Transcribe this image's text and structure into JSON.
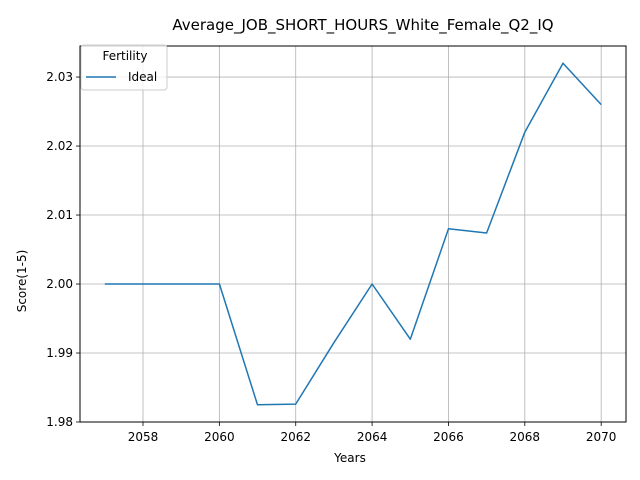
{
  "chart_data": {
    "type": "line",
    "title": "Average_JOB_SHORT_HOURS_White_Female_Q2_IQ",
    "xlabel": "Years",
    "ylabel": "Score(1-5)",
    "xlim": [
      2056.35,
      2070.65
    ],
    "ylim": [
      1.98,
      2.0345
    ],
    "xticks": [
      2058,
      2060,
      2062,
      2064,
      2066,
      2068,
      2070
    ],
    "yticks": [
      1.98,
      1.99,
      2.0,
      2.01,
      2.02,
      2.03
    ],
    "ytick_labels": [
      "1.98",
      "1.99",
      "2.00",
      "2.01",
      "2.02",
      "2.03"
    ],
    "grid": true,
    "legend": {
      "title": "Fertility",
      "position": "top-left"
    },
    "series": [
      {
        "name": "Ideal",
        "color": "#1f77b4",
        "x": [
          2057,
          2058,
          2059,
          2060,
          2061,
          2062,
          2063,
          2064,
          2065,
          2066,
          2067,
          2068,
          2069,
          2070
        ],
        "y": [
          2.0,
          2.0,
          2.0,
          2.0,
          1.9825,
          1.9826,
          1.9915,
          2.0,
          1.992,
          2.008,
          2.0074,
          2.022,
          2.032,
          2.026
        ]
      }
    ]
  }
}
